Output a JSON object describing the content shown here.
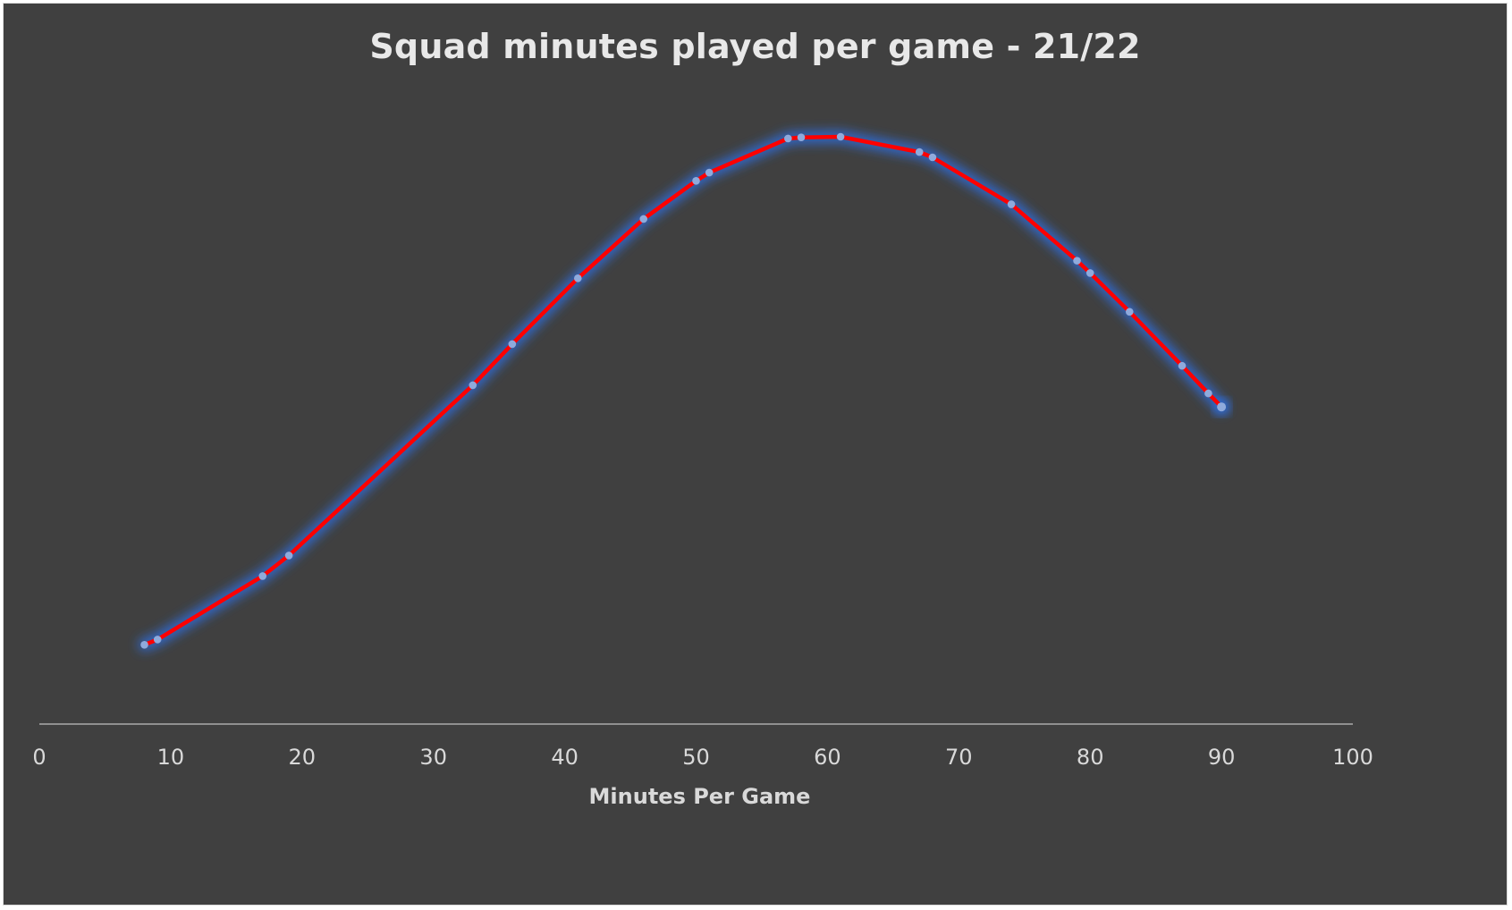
{
  "chart_data": {
    "type": "line",
    "title": "Squad minutes played per game - 21/22",
    "xlabel": "Minutes Per Game",
    "ylabel": "",
    "xlim": [
      0,
      100
    ],
    "xticks": [
      0,
      10,
      20,
      30,
      40,
      50,
      60,
      70,
      80,
      90,
      100
    ],
    "y_axis_visible": false,
    "ylim": [
      0,
      1
    ],
    "grid": false,
    "legend": "none",
    "series": [
      {
        "x": [
          8,
          9,
          17,
          19,
          33,
          36,
          41,
          46,
          50,
          51,
          57,
          58,
          61,
          67,
          68,
          74,
          79,
          80,
          83,
          87,
          89,
          90
        ],
        "y": [
          0.135,
          0.144,
          0.252,
          0.287,
          0.577,
          0.647,
          0.759,
          0.86,
          0.925,
          0.939,
          0.997,
          0.999,
          1.0,
          0.974,
          0.965,
          0.885,
          0.789,
          0.768,
          0.702,
          0.61,
          0.563,
          0.54
        ],
        "line_color": "#ff0000",
        "marker_color": "#8faadc",
        "glow_color": "#2f6fe0"
      }
    ],
    "colors": {
      "background": "#404040",
      "text": "#d9d9d9",
      "axis_line": "#bfbfbf"
    }
  }
}
